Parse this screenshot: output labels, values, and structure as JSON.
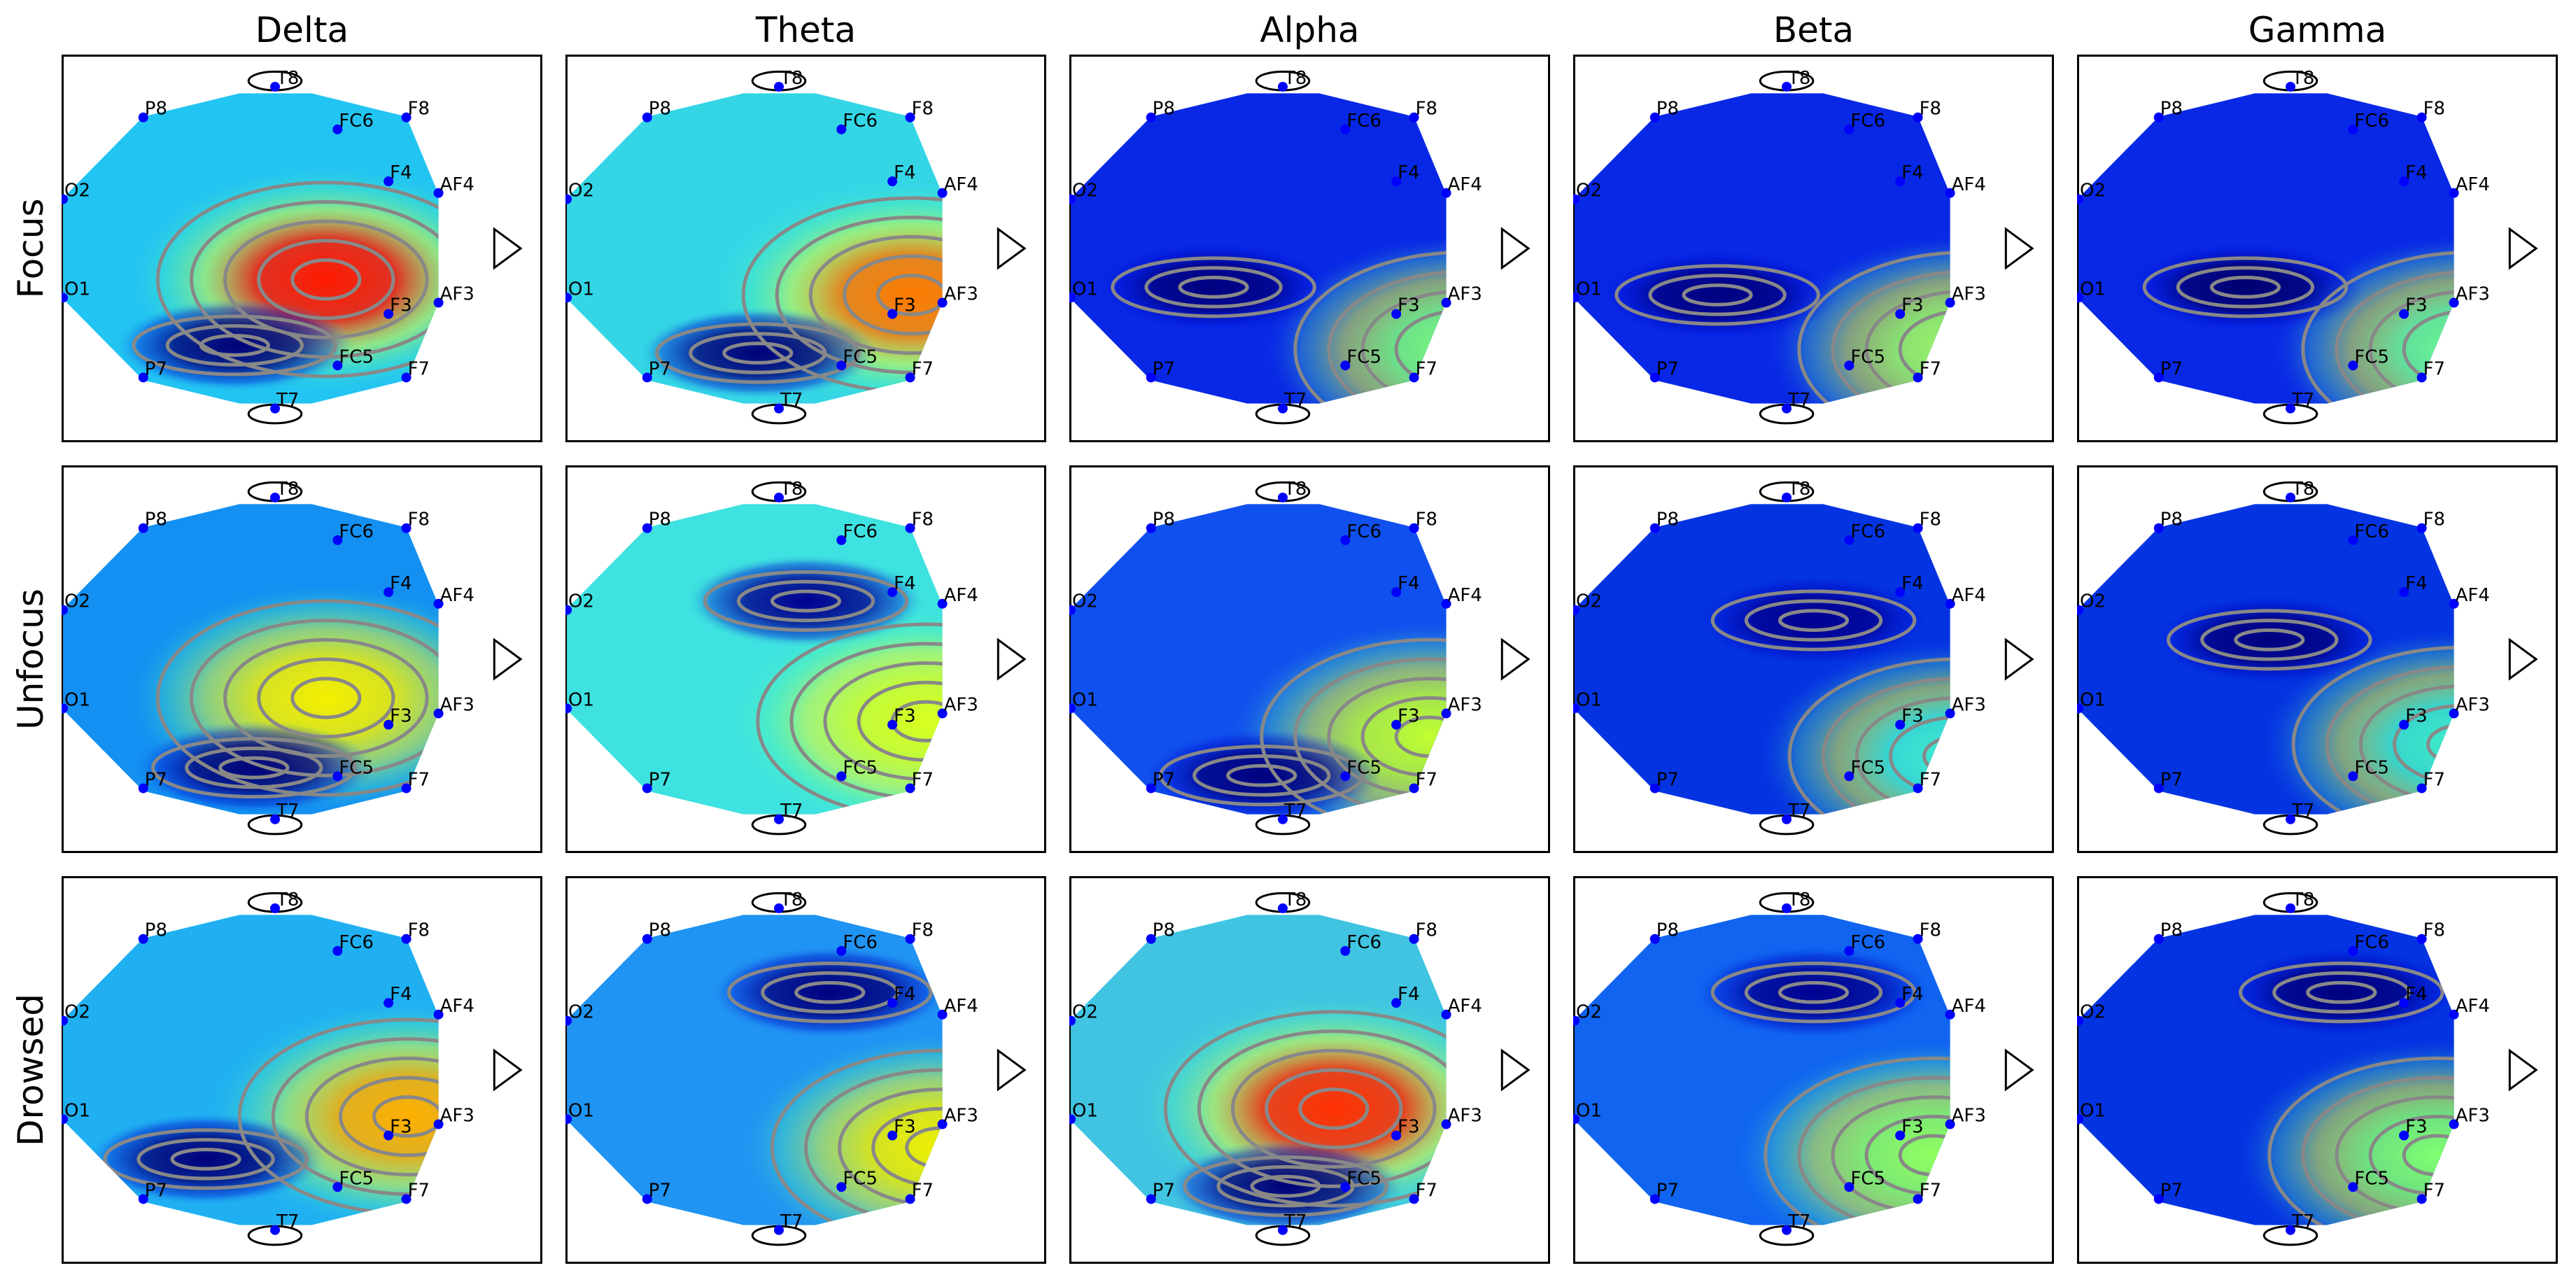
{
  "chart_data": {
    "type": "heatmap",
    "title": "",
    "columns": [
      "Delta",
      "Theta",
      "Alpha",
      "Beta",
      "Gamma"
    ],
    "rows": [
      "Focus",
      "Unfocus",
      "Drowsed"
    ],
    "electrodes": [
      "T8",
      "P8",
      "F8",
      "FC6",
      "F4",
      "AF4",
      "O2",
      "O1",
      "AF3",
      "F3",
      "FC5",
      "P7",
      "F7",
      "T7"
    ],
    "colormap": "jet",
    "contour_color": "#888888",
    "electrode_color": "#0000ff",
    "panels": [
      [
        {
          "base": "#22c4f2",
          "hot": "#ff1a00",
          "cold": "#00007a"
        },
        {
          "base": "#34d6e6",
          "hot": "#ff7a00",
          "cold": "#00007a"
        },
        {
          "base": "#0828e6",
          "hot": "#7dff7a",
          "cold": "#000080"
        },
        {
          "base": "#0828e6",
          "hot": "#a0ff60",
          "cold": "#000080"
        },
        {
          "base": "#0828e6",
          "hot": "#70ff90",
          "cold": "#000070"
        }
      ],
      [
        {
          "base": "#1390f2",
          "hot": "#f6f000",
          "cold": "#00007a"
        },
        {
          "base": "#3ee2e0",
          "hot": "#d8ff20",
          "cold": "#000090"
        },
        {
          "base": "#1050ee",
          "hot": "#c0ff30",
          "cold": "#000080"
        },
        {
          "base": "#0434e2",
          "hot": "#40f0d0",
          "cold": "#000090"
        },
        {
          "base": "#0434e2",
          "hot": "#40f0c8",
          "cold": "#000080"
        }
      ],
      [
        {
          "base": "#20b0f2",
          "hot": "#ffb000",
          "cold": "#00007a"
        },
        {
          "base": "#2094f2",
          "hot": "#f0f000",
          "cold": "#000080"
        },
        {
          "base": "#40c4e2",
          "hot": "#ff3000",
          "cold": "#00007a"
        },
        {
          "base": "#1064f0",
          "hot": "#90ff60",
          "cold": "#000090"
        },
        {
          "base": "#0434e2",
          "hot": "#80ff70",
          "cold": "#000080"
        }
      ]
    ]
  }
}
